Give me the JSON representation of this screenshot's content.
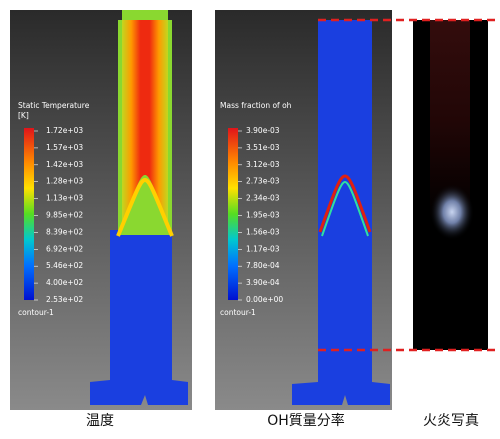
{
  "panels": [
    {
      "legend": {
        "title": "Static Temperature",
        "unit": "[K]",
        "labels": [
          "1.72e+03",
          "1.57e+03",
          "1.42e+03",
          "1.28e+03",
          "1.13e+03",
          "9.85e+02",
          "8.39e+02",
          "6.92e+02",
          "5.46e+02",
          "4.00e+02",
          "2.53e+02"
        ],
        "footer": "contour-1"
      },
      "caption": "温度"
    },
    {
      "legend": {
        "title": "Mass fraction of oh",
        "labels": [
          "3.90e-03",
          "3.51e-03",
          "3.12e-03",
          "2.73e-03",
          "2.34e-03",
          "1.95e-03",
          "1.56e-03",
          "1.17e-03",
          "7.80e-04",
          "3.90e-04",
          "0.00e+00"
        ],
        "footer": "contour-1"
      },
      "caption": "OH質量分率"
    },
    {
      "caption": "火炎写真"
    }
  ]
}
